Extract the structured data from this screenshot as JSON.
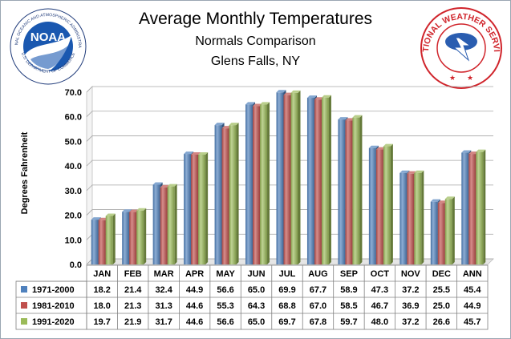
{
  "header": {
    "title": "Average Monthly Temperatures",
    "subtitle": "Normals  Comparison",
    "location": "Glens Falls, NY"
  },
  "logos": {
    "left": {
      "text": "NOAA",
      "ring_text": "NATIONAL OCEANIC AND ATMOSPHERIC ADMINISTRATION",
      "bottom_text": "U.S. DEPARTMENT OF COMMERCE"
    },
    "right": {
      "ring_text": "NATIONAL WEATHER SERVICE"
    }
  },
  "chart_data": {
    "type": "bar",
    "ylabel": "Degrees Fahrenheit",
    "ylim": [
      0,
      70
    ],
    "yticks": [
      "0.0",
      "10.0",
      "20.0",
      "30.0",
      "40.0",
      "50.0",
      "60.0",
      "70.0"
    ],
    "grid": true,
    "categories": [
      "JAN",
      "FEB",
      "MAR",
      "APR",
      "MAY",
      "JUN",
      "JUL",
      "AUG",
      "SEP",
      "OCT",
      "NOV",
      "DEC",
      "ANN"
    ],
    "series": [
      {
        "name": "1971-2000",
        "color": "#4f81bd",
        "values": [
          18.2,
          21.4,
          32.4,
          44.9,
          56.6,
          65.0,
          69.9,
          67.7,
          58.9,
          47.3,
          37.2,
          25.5,
          45.4
        ],
        "labels": [
          "18.2",
          "21.4",
          "32.4",
          "44.9",
          "56.6",
          "65.0",
          "69.9",
          "67.7",
          "58.9",
          "47.3",
          "37.2",
          "25.5",
          "45.4"
        ]
      },
      {
        "name": "1981-2010",
        "color": "#c0504d",
        "values": [
          18.0,
          21.3,
          31.3,
          44.6,
          55.3,
          64.3,
          68.8,
          67.0,
          58.5,
          46.7,
          36.9,
          25.0,
          44.9
        ],
        "labels": [
          "18.0",
          "21.3",
          "31.3",
          "44.6",
          "55.3",
          "64.3",
          "68.8",
          "67.0",
          "58.5",
          "46.7",
          "36.9",
          "25.0",
          "44.9"
        ]
      },
      {
        "name": "1991-2020",
        "color": "#9bbb59",
        "values": [
          19.7,
          21.9,
          31.7,
          44.6,
          56.6,
          65.0,
          69.7,
          67.8,
          59.7,
          48.0,
          37.2,
          26.6,
          45.7
        ],
        "labels": [
          "19.7",
          "21.9",
          "31.7",
          "44.6",
          "56.6",
          "65.0",
          "69.7",
          "67.8",
          "59.7",
          "48.0",
          "37.2",
          "26.6",
          "45.7"
        ]
      }
    ],
    "legend_placement": "data-table-left"
  }
}
